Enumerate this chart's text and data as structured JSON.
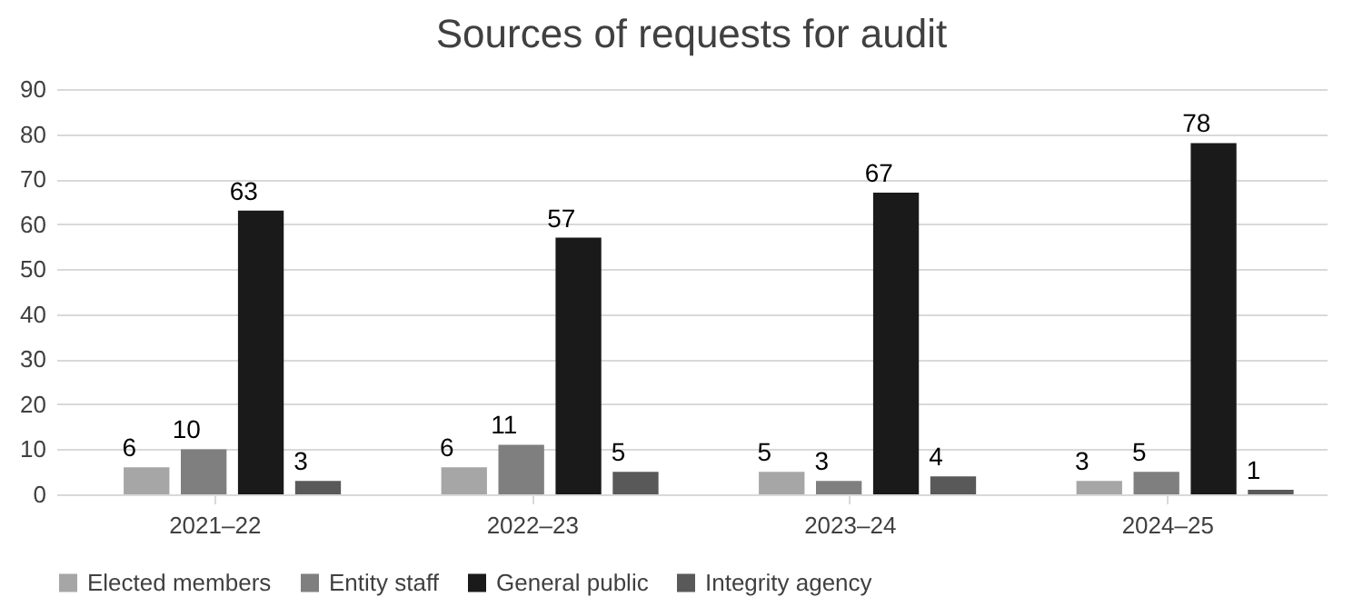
{
  "chart_data": {
    "type": "bar",
    "title": "Sources of requests for audit",
    "categories": [
      "2021–22",
      "2022–23",
      "2023–24",
      "2024–25"
    ],
    "series": [
      {
        "name": "Elected members",
        "color": "#a6a6a6",
        "values": [
          6,
          6,
          5,
          3
        ]
      },
      {
        "name": "Entity staff",
        "color": "#7f7f7f",
        "values": [
          10,
          11,
          3,
          5
        ]
      },
      {
        "name": "General public",
        "color": "#1a1a1a",
        "values": [
          63,
          57,
          67,
          78
        ]
      },
      {
        "name": "Integrity agency",
        "color": "#595959",
        "values": [
          3,
          5,
          4,
          1
        ]
      }
    ],
    "ylim": [
      0,
      90
    ],
    "yticks": [
      0,
      10,
      20,
      30,
      40,
      50,
      60,
      70,
      80,
      90
    ],
    "grid": "y",
    "legend": "bottom",
    "data_labels": true
  }
}
